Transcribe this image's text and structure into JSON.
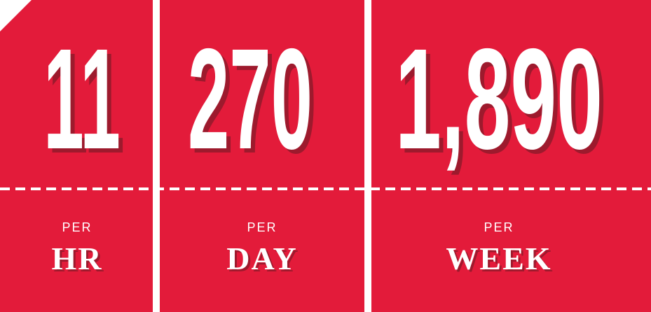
{
  "panels": [
    {
      "value": "11",
      "per": "PER",
      "unit": "HR"
    },
    {
      "value": "270",
      "per": "PER",
      "unit": "DAY"
    },
    {
      "value": "1,890",
      "per": "PER",
      "unit": "WEEK"
    }
  ]
}
